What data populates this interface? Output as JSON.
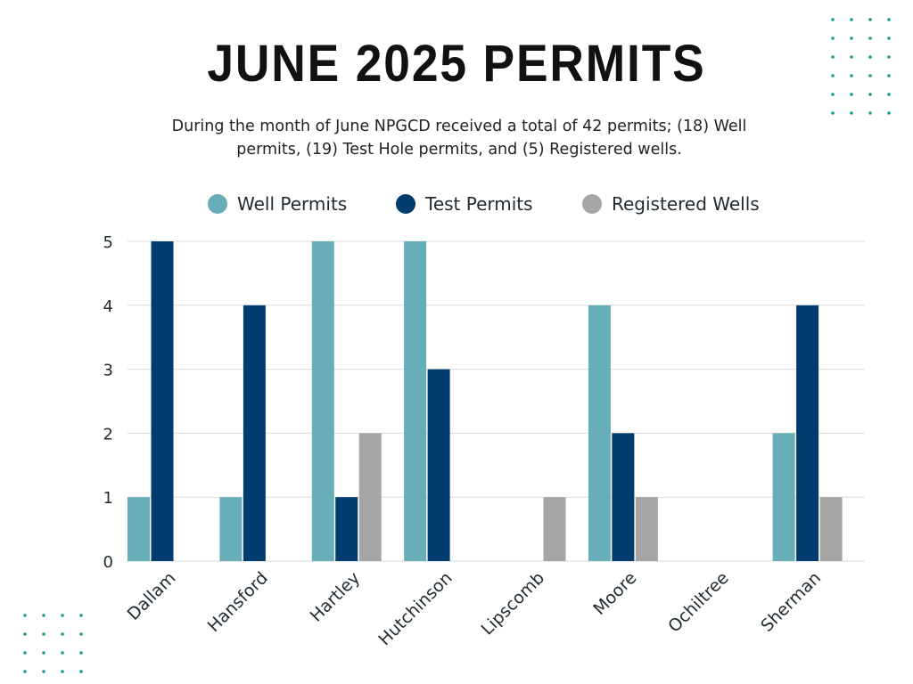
{
  "header": {
    "title": "JUNE 2025 PERMITS",
    "subtitle": "During the month of June NPGCD received a total of 42 permits; (18) Well permits, (19) Test Hole permits, and (5) Registered wells."
  },
  "colors": {
    "well_permits": "#68aeb8",
    "test_permits": "#003c6e",
    "registered_wells": "#a6a6a6",
    "grid": "#d9d9d9",
    "dots": "#1a9a94"
  },
  "chart_data": {
    "type": "bar",
    "categories": [
      "Dallam",
      "Hansford",
      "Hartley",
      "Hutchinson",
      "Lipscomb",
      "Moore",
      "Ochiltree",
      "Sherman"
    ],
    "series": [
      {
        "name": "Well Permits",
        "values": [
          1,
          1,
          5,
          5,
          0,
          4,
          0,
          2
        ]
      },
      {
        "name": "Test Permits",
        "values": [
          5,
          4,
          1,
          3,
          0,
          2,
          0,
          4
        ]
      },
      {
        "name": "Registered Wells",
        "values": [
          0,
          0,
          2,
          0,
          1,
          1,
          0,
          1
        ]
      }
    ],
    "ylim": [
      0,
      5
    ],
    "yticks": [
      "0",
      "1",
      "2",
      "3",
      "4",
      "5"
    ],
    "grid": true,
    "legend_position": "top-center",
    "xlabel": "",
    "ylabel": ""
  }
}
